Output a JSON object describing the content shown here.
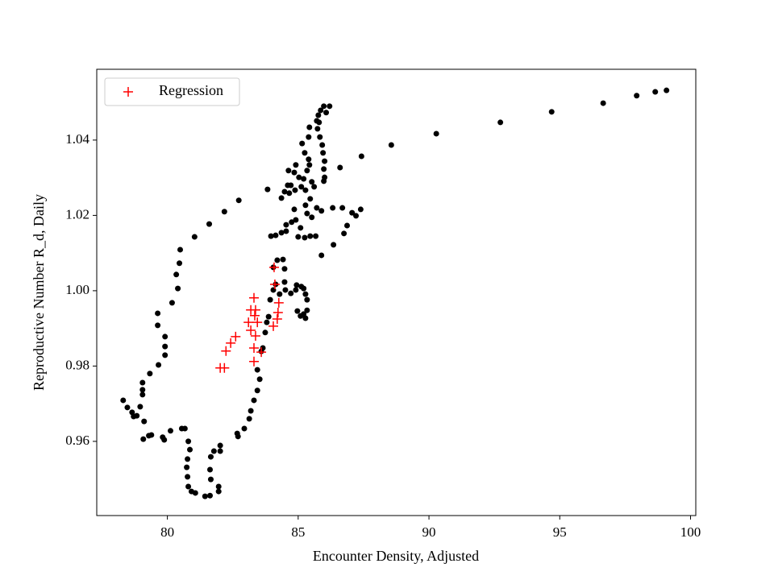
{
  "chart_data": {
    "type": "scatter",
    "x_label": "Encounter Density, Adjusted",
    "y_label": "Reproductive Number R_d, Daily",
    "xlim": [
      77.3,
      100.2
    ],
    "ylim": [
      0.9403,
      1.0588
    ],
    "xticks": [
      80,
      85,
      90,
      95,
      100
    ],
    "yticks": [
      0.96,
      0.98,
      {
        "value": 1,
        "label": "1.00"
      },
      1.02,
      1.04
    ],
    "legend": "upper left",
    "series": [
      {
        "color": "#000000",
        "marker": "dot",
        "x": [
          99.08,
          98.65,
          97.94,
          96.66,
          94.69,
          92.73,
          90.28,
          88.56,
          87.42,
          86.6,
          86.2,
          85.98,
          85.86,
          85.77,
          85.71,
          86.07,
          85.8,
          85.74,
          85.83,
          85.92,
          85.95,
          86.01,
          85.98,
          86.01,
          85.98,
          85.43,
          85.4,
          85.15,
          85.25,
          85.4,
          85.43,
          85.34,
          85.21,
          85.03,
          84.85,
          84.63,
          84.6,
          84.48,
          84.36,
          83.83,
          84.91,
          85.61,
          85.52,
          84.66,
          84.72,
          84.88,
          85.12,
          85.28,
          85.46,
          85.28,
          85.34,
          85.52,
          85.71,
          85.89,
          86.32,
          86.69,
          86.87,
          87.06,
          87.21,
          87.39,
          86.75,
          86.35,
          85.89,
          85.67,
          85.46,
          85.25,
          85.0,
          85.09,
          84.91,
          84.85,
          84.75,
          84.54,
          84.54,
          84.36,
          84.14,
          83.96,
          84.2,
          84.42,
          84.05,
          84.48,
          84.48,
          84.14,
          84.05,
          83.93,
          83.87,
          83.8,
          84.72,
          84.94,
          85.12,
          85.21,
          85.28,
          85.34,
          85.34,
          85.28,
          85.21,
          85.09,
          84.97,
          84.91,
          84.51,
          84.29,
          83.74,
          83.65,
          83.59,
          83.44,
          83.53,
          83.44,
          83.31,
          83.19,
          83.13,
          82.94,
          82.7,
          82.67,
          82.02,
          82.02,
          81.78,
          81.66,
          81.63,
          81.66,
          81.96,
          81.96,
          81.63,
          81.44,
          81.07,
          80.92,
          80.8,
          80.77,
          80.74,
          80.77,
          80.86,
          80.8,
          80.67,
          80.55,
          80.12,
          79.88,
          79.82,
          79.39,
          79.08,
          79.29,
          79.11,
          78.83,
          78.65,
          78.47,
          78.31,
          78.71,
          78.96,
          79.05,
          79.05,
          79.05,
          79.33,
          79.66,
          79.91,
          79.91,
          79.91,
          79.63,
          79.63,
          80.18,
          80.4,
          80.34,
          80.46,
          80.49,
          81.04,
          81.6,
          82.18,
          82.73
        ],
        "values": [
          1.0532,
          1.0528,
          1.0518,
          1.0498,
          1.0475,
          1.0447,
          1.0417,
          1.0387,
          1.0357,
          1.0327,
          1.049,
          1.049,
          1.0479,
          1.0466,
          1.0451,
          1.0473,
          1.0447,
          1.043,
          1.0408,
          1.0387,
          1.0366,
          1.0344,
          1.0323,
          1.0301,
          1.0291,
          1.0434,
          1.0408,
          1.0391,
          1.0366,
          1.0349,
          1.0334,
          1.0319,
          1.0297,
          1.0301,
          1.0314,
          1.0319,
          1.028,
          1.0263,
          1.0246,
          1.0269,
          1.0334,
          1.0276,
          1.0289,
          1.0259,
          1.028,
          1.0267,
          1.0276,
          1.0267,
          1.0244,
          1.0227,
          1.0205,
          1.0195,
          1.022,
          1.0212,
          1.022,
          1.022,
          1.0173,
          1.0207,
          1.0199,
          1.0216,
          1.0152,
          1.0122,
          1.0094,
          1.0145,
          1.0145,
          1.0141,
          1.0143,
          1.0167,
          1.0188,
          1.0216,
          1.0182,
          1.0175,
          1.0158,
          1.0154,
          1.0147,
          1.0145,
          1.0081,
          1.0083,
          1.0062,
          1.0058,
          1.0023,
          1.0017,
          1.0002,
          0.9976,
          0.9931,
          0.9916,
          0.9993,
          1.0015,
          1.0011,
          1.0006,
          0.9991,
          0.9976,
          0.9948,
          0.9927,
          0.9938,
          0.9933,
          0.9946,
          1.0002,
          1.0002,
          0.9991,
          0.9889,
          0.9848,
          0.9839,
          0.979,
          0.9765,
          0.9735,
          0.9709,
          0.9681,
          0.966,
          0.9634,
          0.9613,
          0.9621,
          0.9589,
          0.9574,
          0.9574,
          0.9559,
          0.9525,
          0.9499,
          0.948,
          0.9467,
          0.9456,
          0.9454,
          0.9463,
          0.9467,
          0.948,
          0.9506,
          0.9531,
          0.9553,
          0.9578,
          0.96,
          0.9634,
          0.9634,
          0.9628,
          0.9604,
          0.9611,
          0.9617,
          0.9606,
          0.9615,
          0.9653,
          0.9668,
          0.9677,
          0.969,
          0.9709,
          0.9666,
          0.9692,
          0.9724,
          0.9737,
          0.9756,
          0.978,
          0.9803,
          0.9829,
          0.9852,
          0.9878,
          0.9908,
          0.994,
          0.9968,
          1.0006,
          1.0043,
          1.0073,
          1.0109,
          1.0143,
          1.0177,
          1.021,
          1.024
        ]
      },
      {
        "name": "Regression",
        "color": "#ff0000",
        "marker": "plus",
        "x": [
          82.02,
          82.18,
          82.24,
          82.42,
          82.61,
          83.1,
          83.19,
          83.31,
          83.19,
          83.31,
          83.31,
          83.37,
          83.44,
          83.34,
          83.37,
          83.59,
          84.05,
          84.2,
          84.23,
          84.26,
          84.11,
          84.08
        ],
        "values": [
          0.9795,
          0.9795,
          0.984,
          0.9861,
          0.9878,
          0.9916,
          0.9949,
          0.9981,
          0.9895,
          0.9848,
          0.9812,
          0.988,
          0.9916,
          0.9934,
          0.9949,
          0.9837,
          0.9906,
          0.9925,
          0.9942,
          0.9968,
          1.0017,
          1.0062
        ]
      }
    ]
  }
}
